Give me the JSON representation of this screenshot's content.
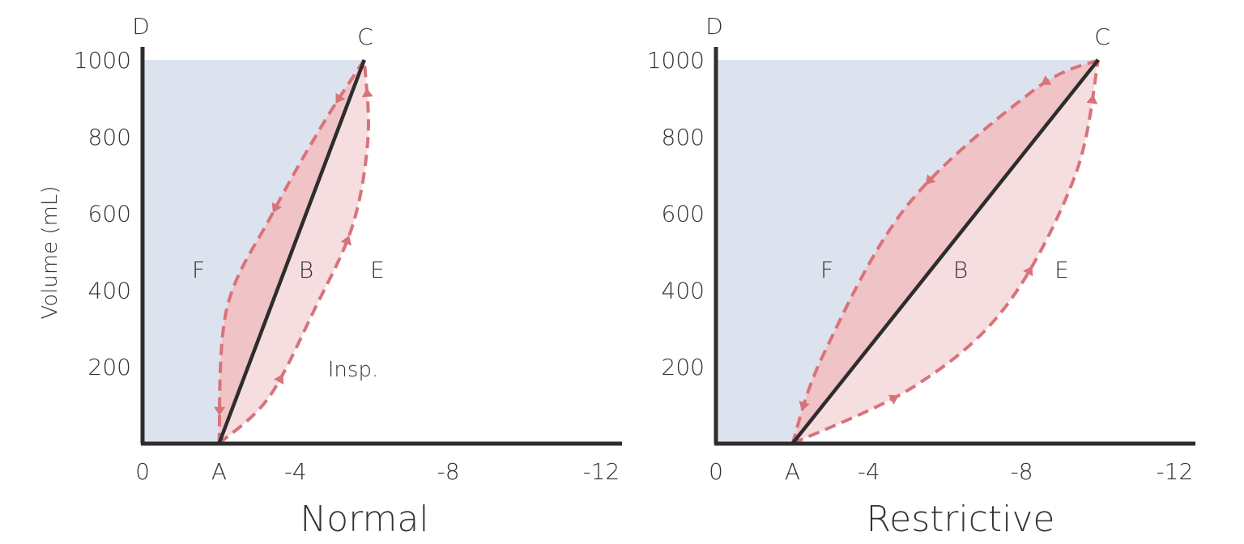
{
  "chart_data": [
    {
      "type": "line",
      "caption": "Normal",
      "ylabel": "Volume (mL)",
      "xlabel": "",
      "x_ticks": [
        {
          "value": 0,
          "label": "0"
        },
        {
          "value": -2,
          "label": "A"
        },
        {
          "value": -4,
          "label": "-4"
        },
        {
          "value": -8,
          "label": "-8"
        },
        {
          "value": -12,
          "label": "-12"
        }
      ],
      "y_ticks": [
        200,
        400,
        600,
        800,
        1000
      ],
      "xlim": [
        0,
        -12.5
      ],
      "ylim": [
        0,
        1000
      ],
      "point_labels": [
        "D",
        "C",
        "F",
        "B",
        "E"
      ],
      "annotation": "Insp.",
      "points": {
        "A": [
          -2,
          0
        ],
        "C": [
          -5.8,
          1000
        ],
        "D": [
          0,
          1000
        ]
      },
      "series": [
        {
          "role": "compliance-line",
          "points": [
            [
              -2,
              0
            ],
            [
              -5.8,
              1000
            ]
          ]
        },
        {
          "role": "inspiration",
          "points": [
            [
              -2,
              0
            ],
            [
              -3.3,
              120
            ],
            [
              -4.5,
              350
            ],
            [
              -5.5,
              570
            ],
            [
              -5.9,
              800
            ],
            [
              -5.8,
              1000
            ]
          ]
        },
        {
          "role": "expiration",
          "points": [
            [
              -5.8,
              1000
            ],
            [
              -4.7,
              830
            ],
            [
              -3.4,
              600
            ],
            [
              -2.2,
              350
            ],
            [
              -2,
              0
            ]
          ]
        }
      ],
      "colors": {
        "curve": "#d9737a",
        "line": "#2d2d2d",
        "shade": "#dde3ee",
        "loop_dark": "#f0c3c6",
        "loop_light": "#f6dde0"
      }
    },
    {
      "type": "line",
      "caption": "Restrictive",
      "ylabel": "",
      "xlabel": "",
      "x_ticks": [
        {
          "value": 0,
          "label": "0"
        },
        {
          "value": -2,
          "label": "A"
        },
        {
          "value": -4,
          "label": "-4"
        },
        {
          "value": -8,
          "label": "-8"
        },
        {
          "value": -12,
          "label": "-12"
        }
      ],
      "y_ticks": [
        200,
        400,
        600,
        800,
        1000
      ],
      "xlim": [
        0,
        -12.5
      ],
      "ylim": [
        0,
        1000
      ],
      "point_labels": [
        "D",
        "C",
        "F",
        "B",
        "E"
      ],
      "points": {
        "A": [
          -2,
          0
        ],
        "C": [
          -10,
          1000
        ],
        "D": [
          0,
          1000
        ]
      },
      "series": [
        {
          "role": "compliance-line",
          "points": [
            [
              -2,
              0
            ],
            [
              -10,
              1000
            ]
          ]
        },
        {
          "role": "inspiration",
          "points": [
            [
              -2,
              0
            ],
            [
              -5.2,
              150
            ],
            [
              -7.6,
              360
            ],
            [
              -9.4,
              700
            ],
            [
              -10,
              1000
            ]
          ]
        },
        {
          "role": "expiration",
          "points": [
            [
              -10,
              1000
            ],
            [
              -8.3,
              920
            ],
            [
              -5,
              620
            ],
            [
              -2.8,
              230
            ],
            [
              -2,
              0
            ]
          ]
        }
      ],
      "colors": {
        "curve": "#d9737a",
        "line": "#2d2d2d",
        "shade": "#dde3ee",
        "loop_dark": "#f0c3c6",
        "loop_light": "#f6dde0"
      }
    }
  ]
}
